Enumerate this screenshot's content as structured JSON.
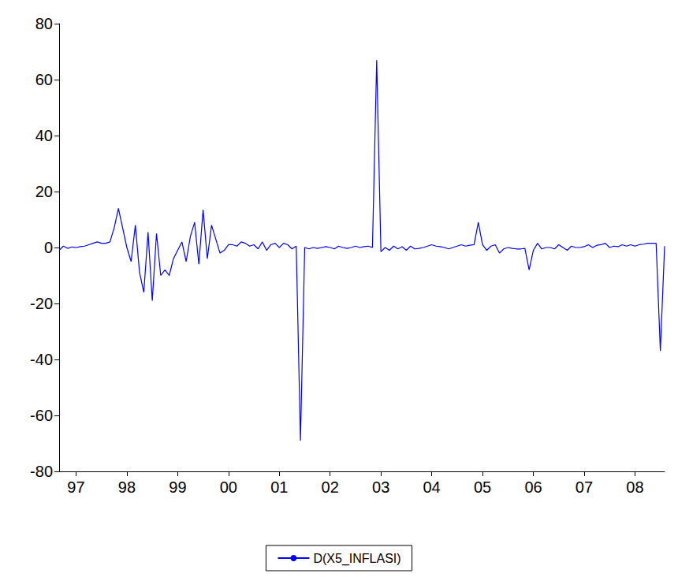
{
  "chart_data": {
    "type": "line",
    "categories": [
      null,
      null,
      null,
      null,
      "97",
      null,
      null,
      null,
      null,
      null,
      null,
      null,
      null,
      null,
      null,
      null,
      "98",
      null,
      null,
      null,
      null,
      null,
      null,
      null,
      null,
      null,
      null,
      null,
      "99",
      null,
      null,
      null,
      null,
      null,
      null,
      null,
      null,
      null,
      null,
      null,
      "00",
      null,
      null,
      null,
      null,
      null,
      null,
      null,
      null,
      null,
      null,
      null,
      "01",
      null,
      null,
      null,
      null,
      null,
      null,
      null,
      null,
      null,
      null,
      null,
      "02",
      null,
      null,
      null,
      null,
      null,
      null,
      null,
      null,
      null,
      null,
      null,
      "03",
      null,
      null,
      null,
      null,
      null,
      null,
      null,
      null,
      null,
      null,
      null,
      "04",
      null,
      null,
      null,
      null,
      null,
      null,
      null,
      null,
      null,
      null,
      null,
      "05",
      null,
      null,
      null,
      null,
      null,
      null,
      null,
      null,
      null,
      null,
      null,
      "06",
      null,
      null,
      null,
      null,
      null,
      null,
      null,
      null,
      null,
      null,
      null,
      "07",
      null,
      null,
      null,
      null,
      null,
      null,
      null,
      null,
      null,
      null,
      null,
      "08",
      null,
      null,
      null,
      null,
      null,
      null,
      null
    ],
    "series": [
      {
        "name": "D(X5_INFLASI)",
        "color": "#0000ff",
        "values": [
          -1,
          0.5,
          -0.3,
          0.2,
          0,
          0.3,
          0.5,
          1,
          1.5,
          2,
          1.5,
          1.5,
          2,
          7,
          14,
          7,
          0,
          -5,
          8,
          -9,
          -16,
          5.5,
          -19,
          5,
          -10,
          -8,
          -10,
          -4,
          -1,
          2,
          -5,
          4,
          9,
          -6,
          13.5,
          -4,
          8,
          3,
          -2,
          -1,
          1,
          1,
          0.5,
          2,
          1.5,
          0.5,
          1,
          -0.5,
          2,
          -1,
          1,
          1.5,
          0,
          1.5,
          1,
          -0.5,
          0.5,
          -69,
          0,
          -0.5,
          0,
          -0.3,
          0,
          0.3,
          0,
          -0.5,
          0.5,
          0,
          -0.3,
          0,
          0.5,
          0,
          0.3,
          0.5,
          0,
          67,
          -1.5,
          0,
          -1,
          0.5,
          -0.5,
          0.3,
          -1,
          0.5,
          -0.5,
          -0.3,
          0,
          0.5,
          1,
          0.5,
          0.3,
          0,
          -0.5,
          0,
          0.5,
          1,
          0.5,
          0.8,
          1,
          9,
          1,
          -1,
          0.5,
          1,
          -2,
          -0.5,
          0,
          -0.3,
          -0.5,
          -0.5,
          -0.3,
          -8,
          -1,
          1.5,
          -0.5,
          0,
          0,
          -0.5,
          1,
          0,
          -1,
          0.5,
          0,
          0,
          0.3,
          1,
          0,
          0.8,
          1,
          1.5,
          0,
          0.5,
          0.3,
          1,
          0.5,
          1,
          0.5,
          1,
          1.2,
          1.5,
          1.5,
          1.5,
          -37,
          0.5
        ]
      }
    ],
    "ylim": [
      -80,
      80
    ],
    "yticks": [
      -80,
      -60,
      -40,
      -20,
      0,
      20,
      40,
      60,
      80
    ],
    "grid": false,
    "legend": "bottom"
  }
}
